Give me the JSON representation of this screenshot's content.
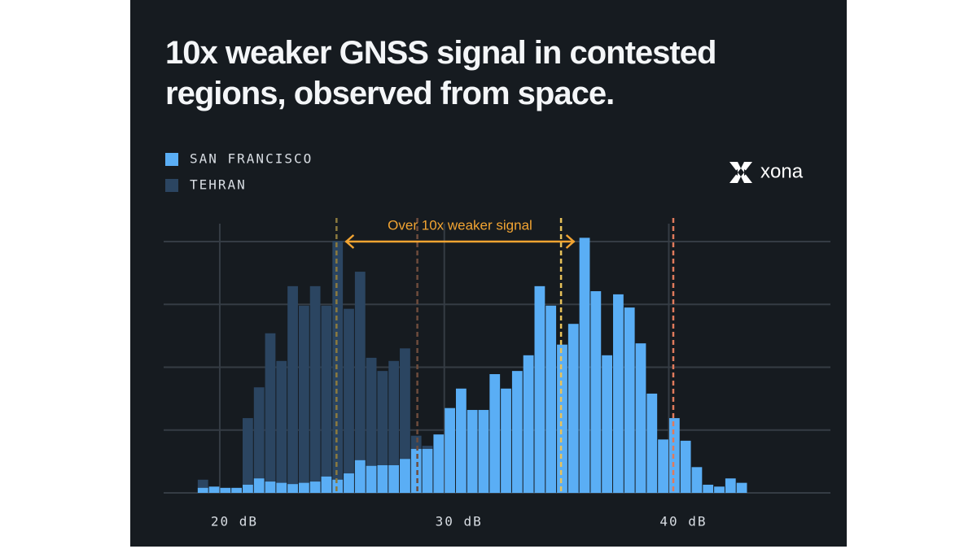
{
  "chart_data": {
    "type": "histogram",
    "title": "10x weaker GNSS signal in contested regions, observed from space.",
    "logo": "xona",
    "annotation": {
      "text": "Over 10x weaker signal",
      "x": [
        25.6,
        35.8
      ],
      "y": 4.0,
      "color": "#f2a432"
    },
    "bins": [
      19,
      19.5,
      20,
      20.5,
      21,
      21.5,
      22,
      22.5,
      23,
      23.5,
      24,
      24.5,
      25,
      25.5,
      26,
      26.5,
      27,
      27.5,
      28,
      28.5,
      29,
      29.5,
      30,
      30.5,
      31,
      31.5,
      32,
      32.5,
      33,
      33.5,
      34,
      34.5,
      35,
      35.5,
      36,
      36.5,
      37,
      37.5,
      38,
      38.5,
      39,
      39.5,
      40,
      40.5,
      41,
      41.5,
      42,
      42.5,
      43,
      43.5
    ],
    "series": [
      {
        "name": "SAN FRANCISCO",
        "color": "#5aaef5",
        "values": [
          0.08,
          0.1,
          0.08,
          0.08,
          0.13,
          0.23,
          0.18,
          0.16,
          0.14,
          0.16,
          0.18,
          0.26,
          0.21,
          0.31,
          0.52,
          0.43,
          0.44,
          0.44,
          0.54,
          0.7,
          0.7,
          0.93,
          1.35,
          1.66,
          1.32,
          1.32,
          1.89,
          1.66,
          1.94,
          2.19,
          3.29,
          2.98,
          2.36,
          2.69,
          4.06,
          3.21,
          2.19,
          3.16,
          2.95,
          2.38,
          1.58,
          0.85,
          1.19,
          0.83,
          0.41,
          0.13,
          0.1,
          0.23,
          0.16
        ]
      },
      {
        "name": "TEHRAN",
        "color": "#2b4561",
        "values": [
          0.21,
          0.08,
          0.05,
          0.05,
          1.19,
          1.68,
          2.54,
          2.1,
          3.29,
          2.98,
          3.29,
          2.98,
          4.01,
          2.93,
          3.52,
          2.15,
          1.94,
          2.1,
          2.3,
          0.91,
          0.75,
          0,
          0,
          0,
          0,
          0,
          0,
          0,
          0,
          0,
          0,
          0,
          0,
          0,
          0,
          0,
          0,
          0,
          0,
          0,
          0,
          0,
          0,
          0,
          0,
          0,
          0,
          0,
          0
        ]
      }
    ],
    "reference_lines": [
      {
        "value": 25.2,
        "color": "#8c7a3e"
      },
      {
        "value": 28.8,
        "color": "#6e4c3c"
      },
      {
        "value": 35.2,
        "color": "#e8c25a"
      },
      {
        "value": 40.2,
        "color": "#e07a5c"
      }
    ],
    "xlim": [
      17.5,
      47.2
    ],
    "xticks": [
      {
        "value": 20,
        "label": "20 dB"
      },
      {
        "value": 30,
        "label": "30 dB"
      },
      {
        "value": 40,
        "label": "40 dB"
      }
    ],
    "ylim": [
      0,
      4.2
    ],
    "yticks": [
      0,
      1,
      2,
      3,
      4
    ],
    "grid": true
  }
}
